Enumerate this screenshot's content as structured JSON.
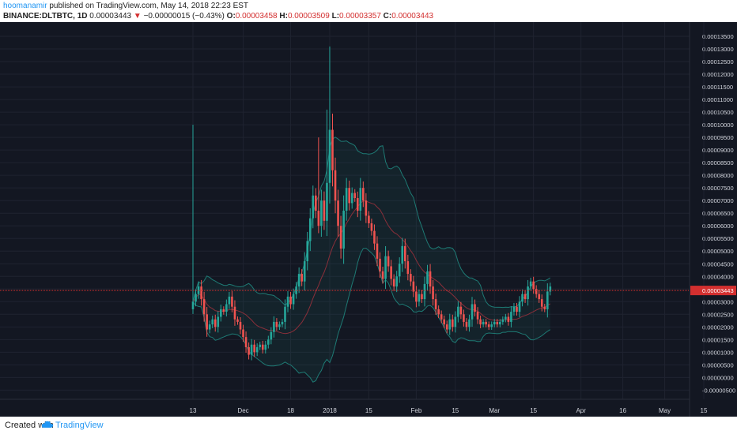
{
  "header": {
    "user": "hoomanamir",
    "published": " published on TradingView.com, May 14, 2018 22:23 EST",
    "symbol": "BINANCE:DLTBTC, 1D",
    "price": "0.00003443",
    "change": "−0.00000015 (−0.43%)",
    "o_label": "O:",
    "o_value": "0.00003458",
    "h_label": "H:",
    "h_value": "0.00003509",
    "l_label": "L:",
    "l_value": "0.00003357",
    "c_label": "C:",
    "c_value": "0.00003443"
  },
  "footer": {
    "created": "Created with",
    "brand": "TradingView"
  },
  "colors": {
    "background": "#131722",
    "up": "#26a69a",
    "down": "#ef5350",
    "band": "#1e7a74",
    "grid": "#1f2330",
    "last_price": "#d32f2f"
  },
  "chart_data": {
    "type": "candlestick",
    "y_ticks": [
      "0.00013500",
      "0.00013000",
      "0.00012500",
      "0.00012000",
      "0.00011500",
      "0.00011000",
      "0.00010500",
      "0.00010000",
      "0.00009500",
      "0.00009000",
      "0.00008500",
      "0.00008000",
      "0.00007500",
      "0.00007000",
      "0.00006500",
      "0.00006000",
      "0.00005500",
      "0.00005000",
      "0.00004500",
      "0.00004000",
      "0.00003500",
      "0.00003000",
      "0.00002500",
      "0.00002000",
      "0.00001500",
      "0.00001000",
      "0.00000500",
      "0.00000000",
      "-0.00000500"
    ],
    "ylim": [
      -8e-06,
      0.00014
    ],
    "x_ticks": [
      {
        "label": "13",
        "day": 0
      },
      {
        "label": "Dec",
        "day": 18
      },
      {
        "label": "18",
        "day": 35
      },
      {
        "label": "2018",
        "day": 49
      },
      {
        "label": "15",
        "day": 63
      },
      {
        "label": "Feb",
        "day": 80
      },
      {
        "label": "15",
        "day": 94
      },
      {
        "label": "Mar",
        "day": 108
      },
      {
        "label": "15",
        "day": 122
      },
      {
        "label": "Apr",
        "day": 139
      },
      {
        "label": "16",
        "day": 154
      },
      {
        "label": "May",
        "day": 169
      },
      {
        "label": "15",
        "day": 183
      }
    ],
    "last_price": 3.443e-05,
    "last_price_label": "0.00003443",
    "closes": [
      3.0,
      3.3,
      3.6,
      3.1,
      2.5,
      1.9,
      2.1,
      2.3,
      2.0,
      2.4,
      2.7,
      2.6,
      2.9,
      3.2,
      2.8,
      2.3,
      2.2,
      1.9,
      1.6,
      1.2,
      0.9,
      1.3,
      1.0,
      1.2,
      1.3,
      1.1,
      1.3,
      1.5,
      1.8,
      2.2,
      2.0,
      2.1,
      2.2,
      2.8,
      3.2,
      2.9,
      3.3,
      3.6,
      4.1,
      3.8,
      4.6,
      5.4,
      6.3,
      7.2,
      6.6,
      6.0,
      7.0,
      6.2,
      7.7,
      9.8,
      8.2,
      7.0,
      6.0,
      5.1,
      6.6,
      7.5,
      6.9,
      7.3,
      7.1,
      6.6,
      7.5,
      7.0,
      6.4,
      6.1,
      5.8,
      5.3,
      4.7,
      4.2,
      3.9,
      4.8,
      4.4,
      3.9,
      3.6,
      4.0,
      4.5,
      5.2,
      4.6,
      4.1,
      3.8,
      3.4,
      3.0,
      3.3,
      3.1,
      3.7,
      4.2,
      3.6,
      3.1,
      2.7,
      2.5,
      2.3,
      2.1,
      1.9,
      2.3,
      2.0,
      2.4,
      2.8,
      2.5,
      2.2,
      2.0,
      2.3,
      2.9,
      2.6,
      2.3,
      2.1,
      2.2,
      2.1,
      2.0,
      2.1,
      2.2,
      2.1,
      2.2,
      2.3,
      2.4,
      2.2,
      2.6,
      2.8,
      2.6,
      3.0,
      3.3,
      3.1,
      3.6,
      3.8,
      3.5,
      3.3,
      3.1,
      2.8,
      2.7,
      3.4,
      3.6
    ]
  }
}
